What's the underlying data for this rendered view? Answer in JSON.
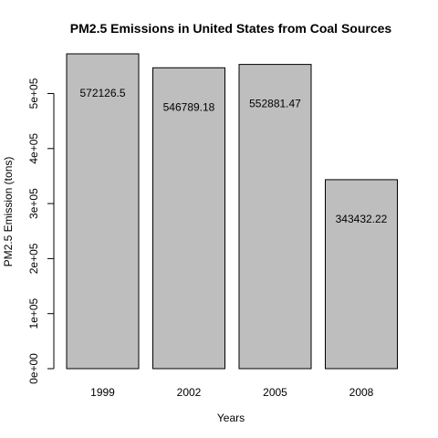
{
  "chart_data": {
    "type": "bar",
    "title": "PM2.5 Emissions in United States from Coal Sources",
    "xlabel": "Years",
    "ylabel": "PM2.5 Emission (tons)",
    "categories": [
      "1999",
      "2002",
      "2005",
      "2008"
    ],
    "values": [
      572126.5,
      546789.18,
      552881.47,
      343432.22
    ],
    "data_labels": [
      "572126.5",
      "546789.18",
      "552881.47",
      "343432.22"
    ],
    "yticks": [
      0,
      100000,
      200000,
      300000,
      400000,
      500000
    ],
    "ytick_labels": [
      "0e+00",
      "1e+05",
      "2e+05",
      "3e+05",
      "4e+05",
      "5e+05"
    ],
    "ylim": [
      0,
      572126.5
    ],
    "bar_color": "#bebebe",
    "grid": false,
    "legend": "none"
  }
}
